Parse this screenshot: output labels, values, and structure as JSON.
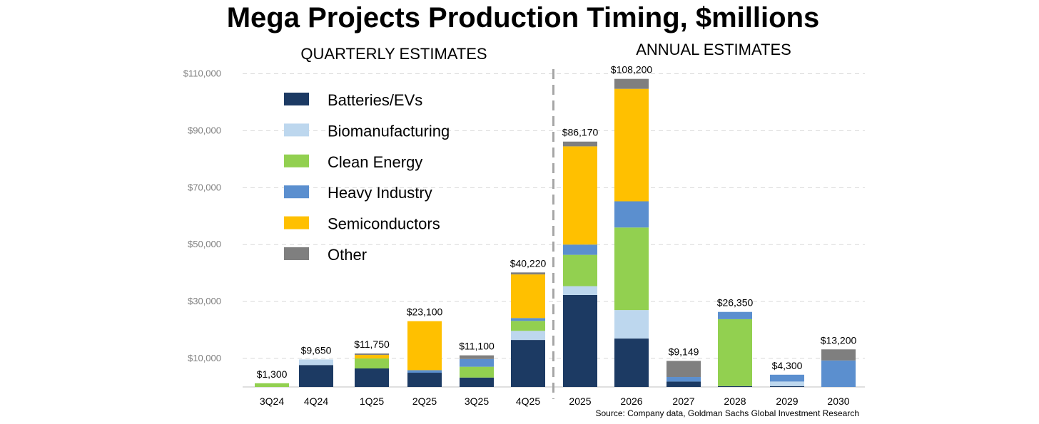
{
  "chart_data": {
    "type": "bar",
    "stacked": true,
    "title": "Mega Projects Production Timing, $millions",
    "section_labels": [
      "QUARTERLY ESTIMATES",
      "ANNUAL ESTIMATES"
    ],
    "categories": [
      "3Q24",
      "4Q24",
      "1Q25",
      "2Q25",
      "3Q25",
      "4Q25",
      "2025",
      "2026",
      "2027",
      "2028",
      "2029",
      "2030"
    ],
    "section_split_after": "4Q25",
    "ylim": [
      0,
      110000
    ],
    "y_ticks": [
      "$10,000",
      "$30,000",
      "$50,000",
      "$70,000",
      "$90,000",
      "$110,000"
    ],
    "y_tick_values": [
      10000,
      30000,
      50000,
      70000,
      90000,
      110000
    ],
    "grid": true,
    "legend_position": "top-left",
    "series": [
      {
        "name": "Batteries/EVs",
        "color": "#1c3a63",
        "values": [
          0,
          7700,
          6500,
          5000,
          3300,
          16500,
          32300,
          17000,
          1900,
          300,
          300,
          0
        ]
      },
      {
        "name": "Biomanufacturing",
        "color": "#bdd7ee",
        "values": [
          0,
          1950,
          0,
          0,
          0,
          3200,
          3100,
          10000,
          0,
          0,
          1600,
          0
        ]
      },
      {
        "name": "Clean Energy",
        "color": "#92d050",
        "values": [
          1300,
          0,
          3500,
          0,
          3800,
          3500,
          11000,
          29000,
          0,
          23500,
          0,
          0
        ]
      },
      {
        "name": "Heavy Industry",
        "color": "#5b8fcf",
        "values": [
          0,
          0,
          0,
          900,
          2700,
          1000,
          3600,
          9200,
          1600,
          2550,
          2400,
          9300
        ]
      },
      {
        "name": "Semiconductors",
        "color": "#ffc000",
        "values": [
          0,
          0,
          1250,
          17200,
          0,
          15320,
          34500,
          39500,
          0,
          0,
          0,
          0
        ]
      },
      {
        "name": "Other",
        "color": "#7f7f7f",
        "values": [
          0,
          0,
          500,
          0,
          1300,
          700,
          1670,
          3500,
          5649,
          0,
          0,
          3900
        ]
      }
    ],
    "totals_labels": [
      "$1,300",
      "$9,650",
      "$11,750",
      "$23,100",
      "$11,100",
      "$40,220",
      "$86,170",
      "$108,200",
      "$9,149",
      "$26,350",
      "$4,300",
      "$13,200"
    ],
    "totals": [
      1300,
      9650,
      11750,
      23100,
      11100,
      40220,
      86170,
      108200,
      9149,
      26350,
      4300,
      13200
    ],
    "source": "Source: Company data, Goldman Sachs Global Investment Research"
  }
}
